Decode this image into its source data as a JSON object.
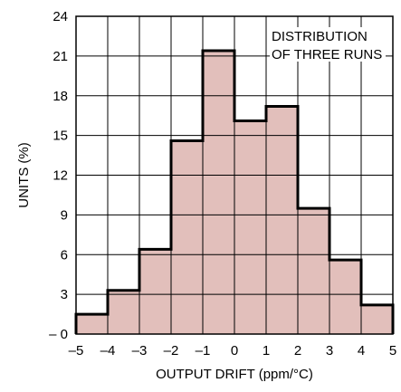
{
  "chart_data": {
    "type": "bar",
    "title": "",
    "xlabel": "OUTPUT DRIFT (ppm/°C)",
    "ylabel": "UNITS (%)",
    "xlim": [
      -5,
      5
    ],
    "ylim": [
      0,
      24
    ],
    "x_ticks": [
      "–5",
      "–4",
      "–3",
      "–2",
      "–1",
      "0",
      "1",
      "2",
      "3",
      "4",
      "5"
    ],
    "y_ticks": [
      "– 0",
      "3",
      "6",
      "9",
      "12",
      "15",
      "18",
      "21",
      "24"
    ],
    "grid": true,
    "bin_edges": [
      -5,
      -4,
      -3,
      -2,
      -1,
      0,
      1,
      2,
      3,
      4,
      5
    ],
    "values": [
      1.5,
      3.3,
      6.4,
      14.6,
      21.4,
      16.1,
      17.2,
      9.5,
      5.6,
      2.2
    ],
    "annotation": [
      "DISTRIBUTION",
      "OF THREE RUNS"
    ],
    "colors": {
      "fill": "#e2bfbb",
      "outline": "#000000",
      "grid": "#000000",
      "background": "#ffffff"
    }
  }
}
